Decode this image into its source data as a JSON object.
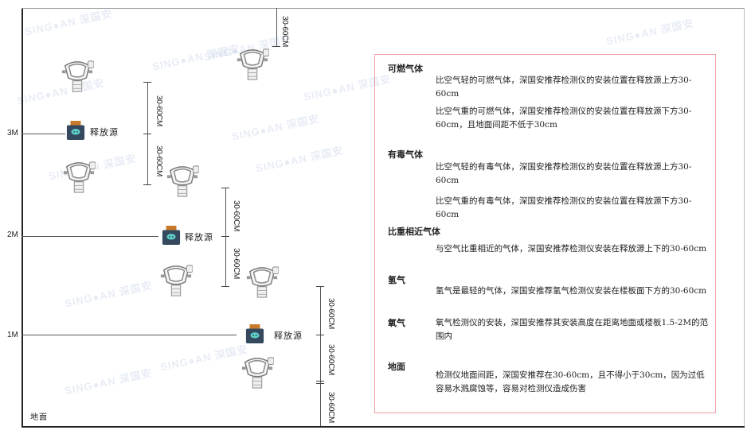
{
  "watermark": "SING●AN 深国安",
  "levels": {
    "l3": "3M",
    "l2": "2M",
    "l1": "1M",
    "ground": "地面"
  },
  "source_label": "释放源",
  "dimension_label": "30-60CM",
  "info": {
    "combustible": {
      "title": "可燃气体",
      "light": "比空气轻的可燃气体，深国安推荐检测仪的安装位置在释放源上方30-60cm",
      "heavy": "比空气重的可燃气体，深国安推荐检测仪的安装位置在释放源下方30-60cm，且地面间距不低于30cm"
    },
    "toxic": {
      "title": "有毒气体",
      "light": "比空气轻的有毒气体，深国安推荐检测仪的安装位置在释放源上方30-60cm",
      "heavy": "比空气重的有毒气体，深国安推荐检测仪的安装位置在释放源下方30-60cm"
    },
    "similar": {
      "title": "比重相近气体",
      "text": "与空气比重相近的气体，深国安推荐检测仪安装在释放源上下的30-60cm"
    },
    "hydrogen": {
      "title": "氢气",
      "text": "氢气是最轻的气体，深国安推荐氢气检测仪安装在楼板面下方的30-60cm"
    },
    "oxygen": {
      "title": "氧气",
      "text": "氧气检测仪的安装，深国安推荐其安装高度在距离地面或楼板1.5-2M的范围内"
    },
    "ground": {
      "title": "地面",
      "text": "检测仪地面间距，深国安推荐在30-60cm，且不得小于30cm，因为过低容易水溅腐蚀等，容易对检测仪造成伤害"
    }
  }
}
